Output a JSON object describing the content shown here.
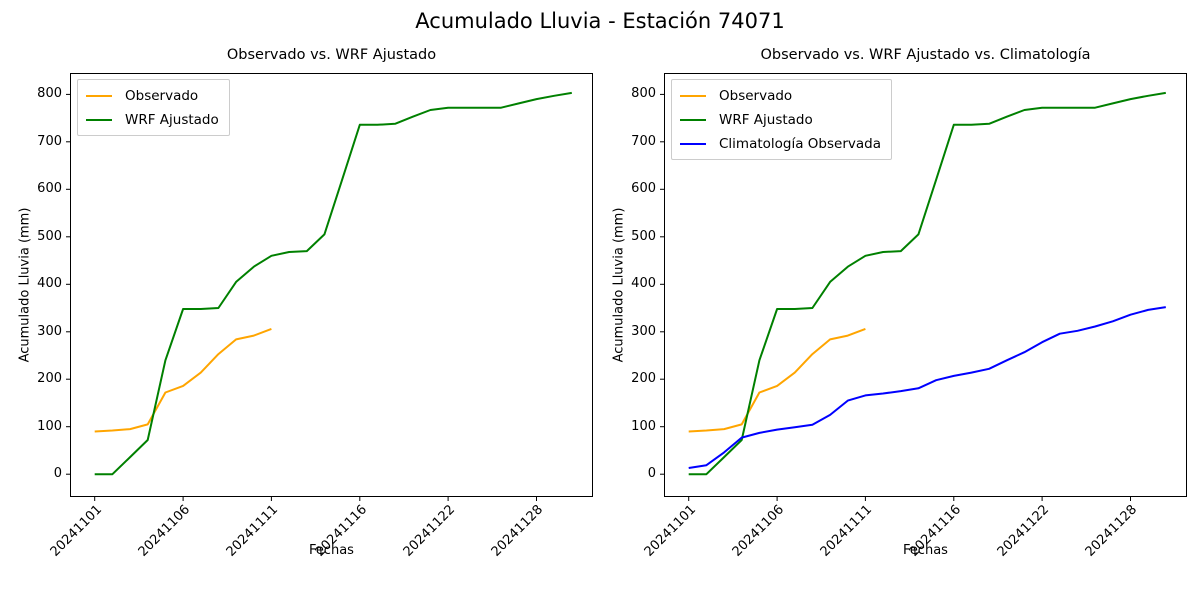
{
  "title": "Acumulado Lluvia - Estación 74071",
  "chart_data": [
    {
      "type": "line",
      "title": "Observado vs. WRF Ajustado",
      "xlabel": "Fechas",
      "ylabel": "Acumulado Lluvia (mm)",
      "grid": false,
      "legend_position": "upper-left",
      "x_categories": [
        "20241101",
        "20241102",
        "20241103",
        "20241104",
        "20241105",
        "20241106",
        "20241107",
        "20241108",
        "20241109",
        "20241110",
        "20241111",
        "20241112",
        "20241113",
        "20241114",
        "20241115",
        "20241116",
        "20241117",
        "20241118",
        "20241119",
        "20241120",
        "20241122",
        "20241123",
        "20241124",
        "20241125",
        "20241126",
        "20241128",
        "20241129",
        "20241130"
      ],
      "xtick_indices": [
        0,
        5,
        10,
        15,
        20,
        25
      ],
      "xtick_labels": [
        "20241101",
        "20241106",
        "20241111",
        "20241116",
        "20241122",
        "20241128"
      ],
      "yticks": [
        0,
        100,
        200,
        300,
        400,
        500,
        600,
        700,
        800
      ],
      "xlim": [
        -1.4,
        28.2
      ],
      "ylim": [
        -48,
        845
      ],
      "series": [
        {
          "name": "Observado",
          "color": "#FFA500",
          "values": [
            90,
            92,
            95,
            105,
            172,
            186,
            214,
            253,
            284,
            292,
            306
          ]
        },
        {
          "name": "WRF Ajustado",
          "color": "#008000",
          "values": [
            0,
            0,
            36,
            72,
            240,
            348,
            348,
            350,
            405,
            437,
            460,
            468,
            470,
            505,
            620,
            736,
            736,
            738,
            753,
            767,
            772,
            772,
            772,
            772,
            781,
            790,
            797,
            803
          ]
        }
      ]
    },
    {
      "type": "line",
      "title": "Observado vs. WRF Ajustado vs. Climatología",
      "xlabel": "Fechas",
      "ylabel": "Acumulado Lluvia (mm)",
      "grid": false,
      "legend_position": "upper-left",
      "x_categories": [
        "20241101",
        "20241102",
        "20241103",
        "20241104",
        "20241105",
        "20241106",
        "20241107",
        "20241108",
        "20241109",
        "20241110",
        "20241111",
        "20241112",
        "20241113",
        "20241114",
        "20241115",
        "20241116",
        "20241117",
        "20241118",
        "20241119",
        "20241120",
        "20241122",
        "20241123",
        "20241124",
        "20241125",
        "20241126",
        "20241128",
        "20241129",
        "20241130"
      ],
      "xtick_indices": [
        0,
        5,
        10,
        15,
        20,
        25
      ],
      "xtick_labels": [
        "20241101",
        "20241106",
        "20241111",
        "20241116",
        "20241122",
        "20241128"
      ],
      "yticks": [
        0,
        100,
        200,
        300,
        400,
        500,
        600,
        700,
        800
      ],
      "xlim": [
        -1.4,
        28.2
      ],
      "ylim": [
        -48,
        845
      ],
      "series": [
        {
          "name": "Observado",
          "color": "#FFA500",
          "values": [
            90,
            92,
            95,
            105,
            172,
            186,
            214,
            253,
            284,
            292,
            306
          ]
        },
        {
          "name": "WRF Ajustado",
          "color": "#008000",
          "values": [
            0,
            0,
            36,
            72,
            240,
            348,
            348,
            350,
            405,
            437,
            460,
            468,
            470,
            505,
            620,
            736,
            736,
            738,
            753,
            767,
            772,
            772,
            772,
            772,
            781,
            790,
            797,
            803
          ]
        },
        {
          "name": "Climatología Observada",
          "color": "#0000FF",
          "values": [
            13,
            19,
            46,
            77,
            87,
            94,
            99,
            104,
            125,
            155,
            166,
            170,
            175,
            181,
            198,
            207,
            214,
            222,
            240,
            257,
            278,
            296,
            302,
            311,
            322,
            336,
            346,
            352
          ]
        }
      ]
    }
  ]
}
